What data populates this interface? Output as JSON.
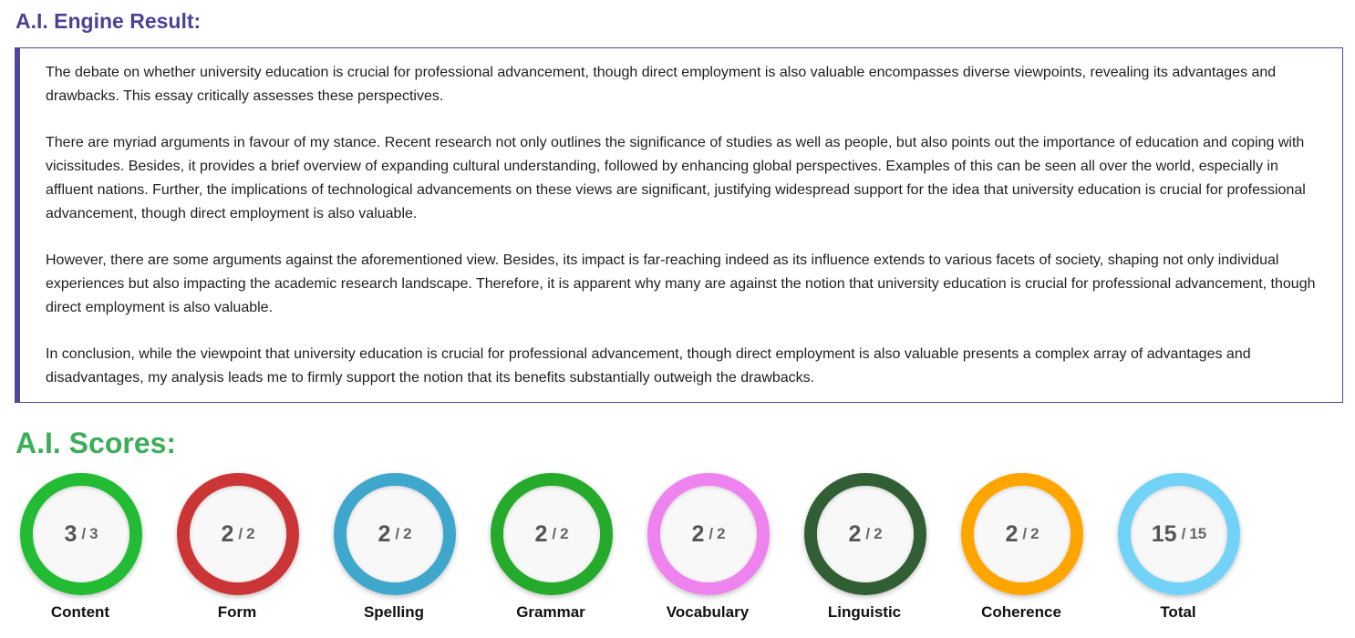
{
  "result": {
    "title": "A.I. Engine Result:",
    "paragraphs": [
      "The debate on whether university education is crucial for professional advancement, though direct employment is also valuable encompasses diverse viewpoints, revealing its advantages and drawbacks. This essay critically assesses these perspectives.",
      "There are myriad arguments in favour of my stance. Recent research not only outlines the significance of studies as well as people, but also points out the importance of education and coping with vicissitudes. Besides, it provides a brief overview of expanding cultural understanding, followed by enhancing global perspectives. Examples of this can be seen all over the world, especially in affluent nations. Further, the implications of technological advancements on these views are significant, justifying widespread support for the idea that university education is crucial for professional advancement, though direct employment is also valuable.",
      "However, there are some arguments against the aforementioned view. Besides, its impact is far-reaching indeed as its influence extends to various facets of society, shaping not only individual experiences but also impacting the academic research landscape. Therefore, it is apparent why many are against the notion that university education is crucial for professional advancement, though direct employment is also valuable.",
      "In conclusion, while the viewpoint that university education is crucial for professional advancement, though direct employment is also valuable presents a complex array of advantages and disadvantages, my analysis leads me to firmly support the notion that its benefits substantially outweigh the drawbacks."
    ]
  },
  "scores": {
    "title": "A.I. Scores:",
    "separator": "/",
    "items": [
      {
        "label": "Content",
        "score": "3",
        "max": "3",
        "color": "#22bb33"
      },
      {
        "label": "Form",
        "score": "2",
        "max": "2",
        "color": "#cc3535"
      },
      {
        "label": "Spelling",
        "score": "2",
        "max": "2",
        "color": "#3fa6cc"
      },
      {
        "label": "Grammar",
        "score": "2",
        "max": "2",
        "color": "#26aa2b"
      },
      {
        "label": "Vocabulary",
        "score": "2",
        "max": "2",
        "color": "#ee82ee"
      },
      {
        "label": "Linguistic",
        "score": "2",
        "max": "2",
        "color": "#325e35"
      },
      {
        "label": "Coherence",
        "score": "2",
        "max": "2",
        "color": "#ffa500"
      },
      {
        "label": "Total",
        "score": "15",
        "max": "15",
        "color": "#72d2f8"
      }
    ]
  }
}
